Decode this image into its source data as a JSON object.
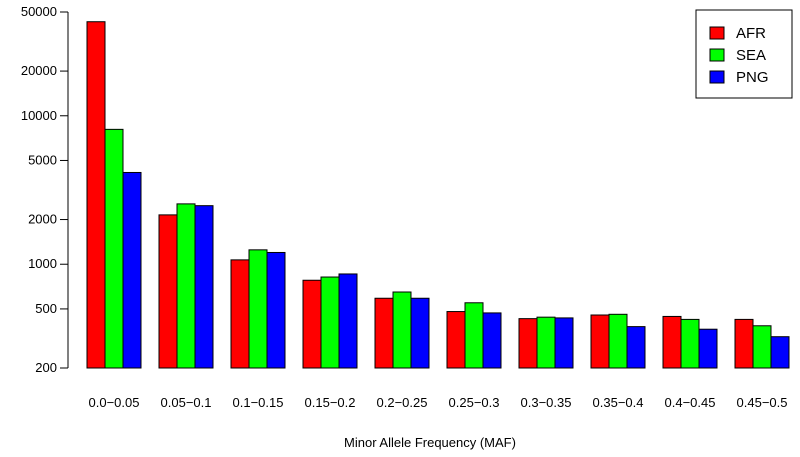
{
  "chart_data": {
    "type": "bar",
    "title": "",
    "xlabel": "Minor Allele Frequency (MAF)",
    "ylabel": "",
    "yscale": "log",
    "ylim": [
      200,
      50000
    ],
    "yticks": [
      200,
      500,
      1000,
      2000,
      5000,
      10000,
      20000,
      50000
    ],
    "grid": false,
    "legend_position": "top-right",
    "categories": [
      "0.0−0.05",
      "0.05−0.1",
      "0.1−0.15",
      "0.15−0.2",
      "0.2−0.25",
      "0.25−0.3",
      "0.3−0.35",
      "0.35−0.4",
      "0.4−0.45",
      "0.45−0.5"
    ],
    "series": [
      {
        "name": "AFR",
        "color": "#ff0000",
        "values": [
          43000,
          2150,
          1070,
          780,
          590,
          480,
          430,
          455,
          445,
          425
        ]
      },
      {
        "name": "SEA",
        "color": "#00ff00",
        "values": [
          8100,
          2550,
          1250,
          820,
          650,
          550,
          440,
          460,
          425,
          385
        ]
      },
      {
        "name": "PNG",
        "color": "#0000ff",
        "values": [
          4150,
          2480,
          1200,
          860,
          590,
          470,
          435,
          380,
          365,
          325
        ]
      }
    ]
  }
}
